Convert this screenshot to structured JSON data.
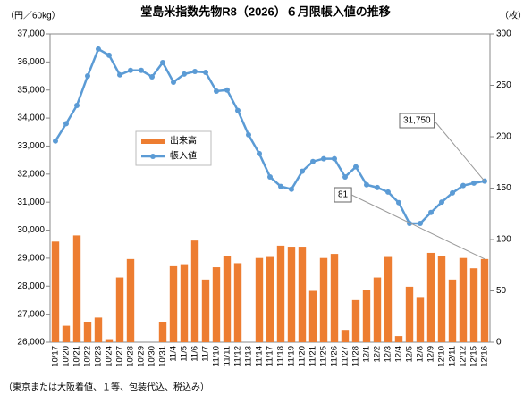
{
  "chart_data": {
    "type": "combo",
    "title": "堂島米指数先物R8（2026）６月限帳入値の推移",
    "y_label": "（円／60kg）",
    "y2_label": "（枚）",
    "footnote": "（東京または大阪着値、１等、包装代込、税込み）",
    "categories": [
      "10/17",
      "10/20",
      "10/21",
      "10/22",
      "10/23",
      "10/24",
      "10/27",
      "10/28",
      "10/29",
      "10/30",
      "10/31",
      "11/4",
      "11/5",
      "11/6",
      "11/7",
      "11/10",
      "11/11",
      "11/12",
      "11/13",
      "11/14",
      "11/17",
      "11/18",
      "11/19",
      "11/20",
      "11/21",
      "11/25",
      "11/26",
      "11/27",
      "11/28",
      "12/1",
      "12/2",
      "12/3",
      "12/4",
      "12/5",
      "12/8",
      "12/9",
      "12/10",
      "12/11",
      "12/12",
      "12/15",
      "12/16"
    ],
    "series": [
      {
        "name": "出来高",
        "type": "bar",
        "axis": "y2",
        "color": "#ed7d31",
        "values": [
          98,
          16,
          104,
          20,
          24,
          3,
          63,
          81,
          0,
          0,
          20,
          74,
          76,
          99,
          61,
          73,
          84,
          77,
          0,
          82,
          83,
          94,
          93,
          93,
          50,
          82,
          86,
          12,
          41,
          51,
          63,
          83,
          6,
          54,
          44,
          87,
          84,
          61,
          82,
          72,
          81
        ]
      },
      {
        "name": "帳入値",
        "type": "line",
        "axis": "y",
        "color": "#5b9bd5",
        "values": [
          33180,
          33800,
          34450,
          35500,
          36460,
          36240,
          35540,
          35700,
          35700,
          35470,
          35980,
          35280,
          35570,
          35660,
          35630,
          34960,
          35000,
          34270,
          33400,
          32730,
          31900,
          31560,
          31460,
          32100,
          32450,
          32550,
          32550,
          31900,
          32260,
          31620,
          31520,
          31360,
          30980,
          30240,
          30240,
          30630,
          31000,
          31330,
          31590,
          31680,
          31750
        ]
      }
    ],
    "annotations": [
      {
        "text": "31,750",
        "series": 1
      },
      {
        "text": "81",
        "series": 0
      }
    ],
    "ylim": [
      26000,
      37000
    ],
    "yticks": [
      {
        "value": 26000,
        "label": "26,000"
      },
      {
        "value": 27000,
        "label": "27,000"
      },
      {
        "value": 28000,
        "label": "28,000"
      },
      {
        "value": 29000,
        "label": "29,000"
      },
      {
        "value": 30000,
        "label": "30,000"
      },
      {
        "value": 31000,
        "label": "31,000"
      },
      {
        "value": 32000,
        "label": "32,000"
      },
      {
        "value": 33000,
        "label": "33,000"
      },
      {
        "value": 34000,
        "label": "34,000"
      },
      {
        "value": 35000,
        "label": "35,000"
      },
      {
        "value": 36000,
        "label": "36,000"
      },
      {
        "value": 37000,
        "label": "37,000"
      }
    ],
    "y2lim": [
      0,
      300
    ],
    "y2ticks": [
      0,
      50,
      100,
      150,
      200,
      250,
      300
    ],
    "grid": false
  }
}
